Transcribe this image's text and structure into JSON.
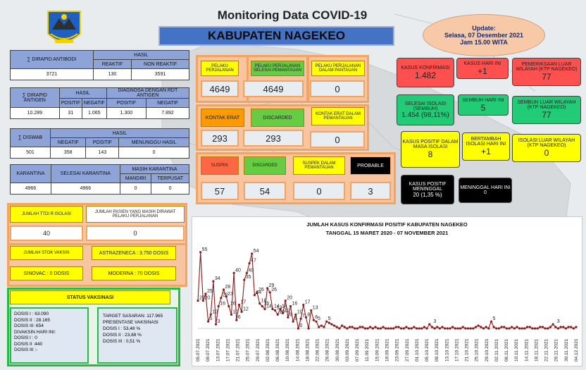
{
  "header": {
    "title": "Monitoring Data COVID-19",
    "kabupaten": "KABUPATEN NAGEKEO",
    "update_line1": "Update:",
    "update_line2": "Selasa, 07 Desember 2021",
    "update_line3": "Jam 15.00 WITA"
  },
  "tests": {
    "pcr": {
      "label": "∑ DIRAPID ANTIBODI",
      "hasil": "HASIL",
      "reaktif_label": "REAKTIF",
      "nonreaktif_label": "NON REAKTIF",
      "total": "3721",
      "reaktif": "130",
      "nonreaktif": "3591"
    },
    "antigen": {
      "label": "∑ DIRAPID ANTIGEN",
      "hasil": "HASIL",
      "rdt_label": "DIAGNOSA DENGAN RDT ANTIGEN",
      "pos_label": "POSITIF",
      "neg_label": "NEGATIF",
      "total": "10.289",
      "pos": "31",
      "neg": "1.065",
      "rdt_pos": "1.300",
      "rdt_neg": "7.892"
    },
    "swab": {
      "label": "∑ DISWAB",
      "hasil": "HASIL",
      "neg_label": "NEGATIF",
      "pos_label": "POSITIF",
      "wait_label": "MENUNGGU HASIL",
      "total": "501",
      "neg": "358",
      "pos": "143",
      "wait": "0"
    },
    "karantina": {
      "label": "KARANTINA",
      "selesai_label": "SELESAI KARANTINA",
      "masih_label": "MASIH KARANTINA",
      "mandiri_label": "MANDIRI",
      "terpusat_label": "TERPUSAT",
      "total": "4966",
      "selesai": "4966",
      "mandiri": "0",
      "terpusat": "0"
    }
  },
  "mid": {
    "row1": [
      {
        "label": "PELAKU PERJALANAN",
        "value": "4649"
      },
      {
        "label": "PELAKU PERJALANAN SELESAI PEMANTAUAN",
        "value": "4649"
      },
      {
        "label": "PELAKU PERJALANAN DALAM PANTAUAN",
        "value": "0"
      }
    ],
    "row2": [
      {
        "label": "KONTAK ERAT",
        "value": "293"
      },
      {
        "label": "DISCARDED",
        "value": "293"
      },
      {
        "label": "KONTAK ERAT DALAM PEMANTAUAN",
        "value": "0"
      }
    ],
    "row3": [
      {
        "label": "SUSPEK",
        "value": "57"
      },
      {
        "label": "DISCARDED",
        "value": "54"
      },
      {
        "label": "SUSPEK DALAM PEMANTAUAN",
        "value": "0"
      },
      {
        "label": "PROBABLE",
        "value": "3"
      }
    ]
  },
  "right": {
    "konfirmasi_label": "KASUS KONFIRMASI",
    "konfirmasi": "1.482",
    "hariini_label": "KASUS HARI INI",
    "hariini": "+1",
    "luar_label": "PEMERIKSAAN LUAR WILAYAH (KTP NAGEKEO)",
    "luar": "77",
    "selesai_label": "SELESAI ISOLASI (SEMBUH)",
    "selesai": "1.454 (98,11%)",
    "sembuh_label": "SEMBUH HARI INI",
    "sembuh": "5",
    "sembuhluar_label": "SEMBUH LUAR WILAYAH (KTP NAGEKEO)",
    "sembuhluar": "77",
    "isolasi_label": "KASUS POSITIF DALAM MASA ISOLASI",
    "isolasi": "8",
    "bertambah_label": "BERTAMBAH ISOLASI HARI INI",
    "bertambah": "+1",
    "isoluar_label": "ISOLASI LUAR WILAYAH (KTP NAGEKEO)",
    "isoluar": "0",
    "meninggal_label": "KASUS POSITIF MENINGGAL",
    "meninggal": "20 (1,35 %)",
    "menhari_label": "MENINGGAL HARI INI",
    "menhari": "0"
  },
  "left_bottom": {
    "ttdi_label": "JUMLAH TTDI R ISOLASI",
    "ttdi": "40",
    "pasien_label": "JUMLAH PASIEN YANG MASIH DIRAWAT PELAKU PERJALANAN",
    "pasien": "0",
    "stok_label": "JUMLAH STOK VAKSIN",
    "astra": "ASTRAZENECA : 3.750 DOSIS",
    "sinovac": "SINOVAC : 0 DOSIS",
    "moderna": "MODERNA : 70 DOSIS",
    "status_label": "STATUS VAKSINASI",
    "dosis": [
      "DOSIS I : 63.090",
      "DOSIS II : 28.165",
      "DOSIS III: 654",
      "DIVAKSIN HARI INI:",
      "DOSIS I : 0",
      "DOSIS II :440",
      "DOSIS III :-"
    ],
    "target": [
      "TARGET SASARAN: 117.965",
      "PRESENTASE VAKSINASI",
      "DOSIS I : 53,48 %",
      "DOSIS II : 23,88 %",
      "DOSIS III : 0,51 %"
    ]
  },
  "chart_data": {
    "type": "line",
    "title": "JUMLAH KASUS KONFIRMASI POSITIF KABUPATEN NAGEKEO",
    "subtitle": "TANGGAL 15 MARET 2020 - 07 NOVEMBER 2021",
    "x_ticks": [
      "05.07.2021",
      "09.07.2021",
      "13.07.2021",
      "17.07.2021",
      "21.07.2021",
      "25.07.2021",
      "29.07.2021",
      "02.08.2021",
      "06.08.2021",
      "10.08.2021",
      "14.08.2021",
      "18.08.2021",
      "22.08.2021",
      "26.08.2021",
      "30.08.2021",
      "03.09.2021",
      "07.09.2021",
      "11.09.2021",
      "15.09.2021",
      "19.09.2021",
      "23.09.2021",
      "27.09.2021",
      "01.10.2021",
      "05.10.2021",
      "09.10.2021",
      "13.10.2021",
      "17.10.2021",
      "21.10.2021",
      "25.10.2021",
      "29.10.2021",
      "02.11.2021",
      "06.11.2021",
      "10.11.2021",
      "14.11.2021",
      "18.11.2021",
      "22.11.2021",
      "26.11.2021",
      "30.11.2021",
      "04.12.2021"
    ],
    "values": [
      20,
      55,
      20,
      25,
      5,
      10,
      34,
      3,
      16,
      22,
      28,
      23,
      16,
      10,
      40,
      6,
      17,
      12,
      35,
      40,
      47,
      54,
      24,
      26,
      18,
      16,
      14,
      29,
      26,
      14,
      13,
      10,
      14,
      11,
      20,
      8,
      16,
      5,
      10,
      0,
      7,
      17,
      8,
      0,
      13,
      6,
      5,
      1,
      2,
      1,
      5,
      4,
      3,
      2,
      1,
      0,
      2,
      1,
      0,
      1,
      1,
      0,
      0,
      1,
      1,
      0,
      0,
      1,
      0,
      1,
      0,
      0,
      1,
      0,
      0,
      0,
      0,
      1,
      1,
      0,
      0,
      1,
      0,
      0,
      1,
      0,
      0,
      0,
      1,
      0,
      3,
      1,
      0,
      1,
      0,
      1,
      0,
      0,
      0,
      1,
      0,
      0,
      0,
      1,
      0,
      0,
      0,
      0,
      1,
      2,
      1,
      0,
      1,
      0,
      5,
      1,
      0,
      0,
      1,
      1,
      0,
      0,
      1,
      0,
      1,
      0,
      0,
      0,
      1,
      1,
      0,
      0,
      0,
      1,
      1,
      0,
      0,
      1,
      3,
      1,
      0,
      1,
      1,
      0,
      1,
      1,
      0,
      1
    ],
    "labeled_points": [
      [
        0,
        20
      ],
      [
        1,
        55
      ],
      [
        2,
        20
      ],
      [
        3,
        25
      ],
      [
        4,
        5
      ],
      [
        5,
        10
      ],
      [
        6,
        34
      ],
      [
        7,
        3
      ],
      [
        8,
        16
      ],
      [
        9,
        22
      ],
      [
        10,
        28
      ],
      [
        11,
        23
      ],
      [
        12,
        16
      ],
      [
        13,
        10
      ],
      [
        14,
        40
      ],
      [
        15,
        6
      ],
      [
        16,
        17
      ],
      [
        17,
        12
      ],
      [
        18,
        35
      ],
      [
        19,
        40
      ],
      [
        20,
        47
      ],
      [
        21,
        54
      ],
      [
        22,
        24
      ],
      [
        23,
        26
      ],
      [
        24,
        18
      ],
      [
        25,
        16
      ],
      [
        26,
        14
      ],
      [
        27,
        29
      ],
      [
        28,
        26
      ],
      [
        29,
        14
      ],
      [
        30,
        13
      ],
      [
        31,
        10
      ],
      [
        32,
        14
      ],
      [
        33,
        11
      ],
      [
        34,
        20
      ],
      [
        35,
        8
      ],
      [
        36,
        16
      ],
      [
        37,
        5
      ],
      [
        38,
        10
      ],
      [
        39,
        0
      ],
      [
        40,
        7
      ],
      [
        41,
        17
      ],
      [
        42,
        8
      ],
      [
        44,
        13
      ],
      [
        45,
        6
      ],
      [
        46,
        5
      ],
      [
        50,
        5
      ],
      [
        91,
        3
      ],
      [
        114,
        5
      ],
      [
        139,
        3
      ]
    ],
    "ylim": [
      0,
      60
    ],
    "line_color": "#8b1a1a"
  }
}
